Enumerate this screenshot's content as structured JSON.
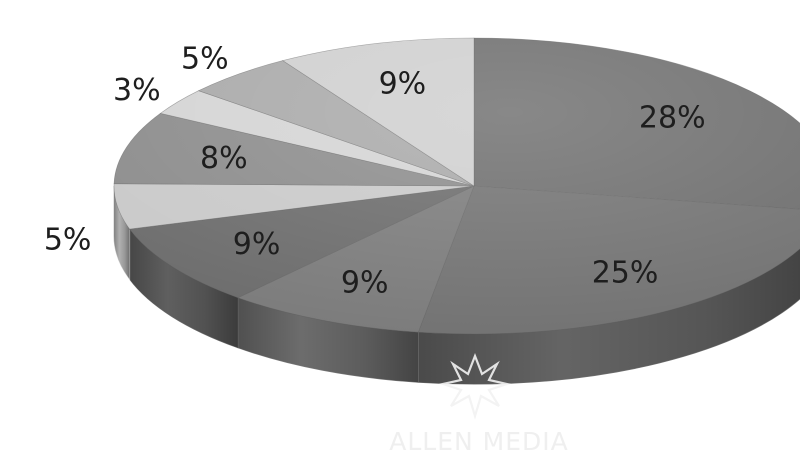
{
  "chart_data": {
    "type": "pie",
    "style": "3d",
    "slices": [
      {
        "label": "28%",
        "value": 28,
        "color": "#6e6e6e"
      },
      {
        "label": "25%",
        "value": 25,
        "color": "#727272"
      },
      {
        "label": "9%",
        "value": 9,
        "color": "#7b7b7b"
      },
      {
        "label": "9%",
        "value": 9,
        "color": "#6c6c6c"
      },
      {
        "label": "5%",
        "value": 5,
        "color": "#c9c9c9"
      },
      {
        "label": "8%",
        "value": 8,
        "color": "#8c8c8c"
      },
      {
        "label": "3%",
        "value": 3,
        "color": "#d4d4d4"
      },
      {
        "label": "5%",
        "value": 5,
        "color": "#a9a9a9"
      },
      {
        "label": "9%",
        "value": 9,
        "color": "#cfcfcf"
      }
    ]
  },
  "watermark": {
    "text": "ALLEN MEDIA",
    "icon": "starburst-logo-icon"
  }
}
